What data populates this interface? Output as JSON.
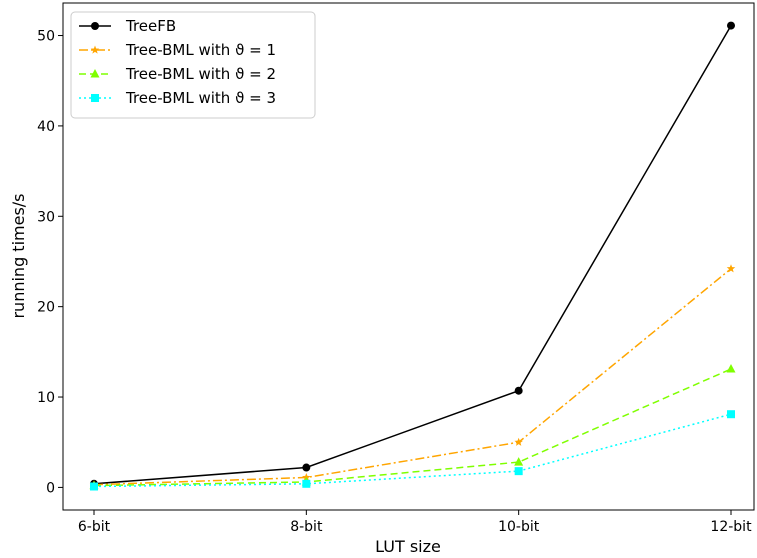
{
  "chart_data": {
    "type": "line",
    "title": "",
    "xlabel": "LUT size",
    "ylabel": "running times/s",
    "categories": [
      "6-bit",
      "8-bit",
      "10-bit",
      "12-bit"
    ],
    "ylim": [
      -2.5,
      53.6
    ],
    "yticks": [
      0,
      10,
      20,
      30,
      40,
      50
    ],
    "grid": false,
    "legend_position": "top-left",
    "series": [
      {
        "name": "TreeFB",
        "values": [
          0.4,
          2.2,
          10.7,
          51.1
        ],
        "color": "#000000",
        "marker": "circle",
        "dash": "solid"
      },
      {
        "name": "Tree-BML with ϑ = 1",
        "values": [
          0.3,
          1.1,
          5.0,
          24.2
        ],
        "color": "#ffa500",
        "marker": "star",
        "dash": "dashdot"
      },
      {
        "name": "Tree-BML with ϑ = 2",
        "values": [
          0.2,
          0.6,
          2.8,
          13.1
        ],
        "color": "#7fff00",
        "marker": "triangle",
        "dash": "dashed"
      },
      {
        "name": "Tree-BML with ϑ = 3",
        "values": [
          0.1,
          0.4,
          1.8,
          8.1
        ],
        "color": "#00ffff",
        "marker": "square",
        "dash": "dotted"
      }
    ]
  }
}
